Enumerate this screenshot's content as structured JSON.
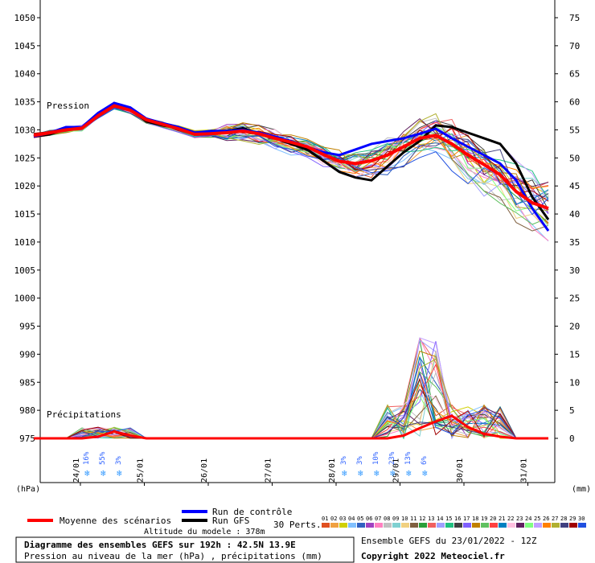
{
  "chart_data": {
    "type": "line",
    "title": "Diagramme des ensembles GEFS sur 192h : 42.5N 13.9E",
    "subtitle": "Pression au niveau de la mer (hPa) , précipitations (mm)",
    "left_axis_unit": "(hPa)",
    "right_axis_unit": "(mm)",
    "left_ticks": [
      1050,
      1045,
      1040,
      1035,
      1030,
      1025,
      1020,
      1015,
      1010,
      1005,
      1000,
      995,
      990,
      985,
      980,
      975
    ],
    "right_ticks": [
      75,
      70,
      65,
      60,
      55,
      50,
      45,
      40,
      35,
      30,
      25,
      20,
      15,
      10,
      5,
      0
    ],
    "date_labels": [
      "24/01",
      "25/01",
      "26/01",
      "27/01",
      "28/01",
      "29/01",
      "30/01",
      "31/01"
    ],
    "panel_labels": {
      "pressure": "Pression",
      "precip": "Précipitations"
    },
    "x_hours": [
      0,
      6,
      12,
      18,
      24,
      30,
      36,
      42,
      48,
      54,
      60,
      66,
      72,
      78,
      84,
      90,
      96,
      102,
      108,
      114,
      120,
      126,
      132,
      138,
      144,
      150,
      156,
      162,
      168,
      174,
      180,
      186,
      192
    ],
    "series": [
      {
        "name": "Moyenne des scénarios",
        "color": "#ff0000",
        "values": [
          1029,
          1029.5,
          1030,
          1030.3,
          1032.5,
          1034.3,
          1033.5,
          1031.8,
          1031,
          1030.2,
          1029.2,
          1029.3,
          1029.5,
          1029.8,
          1029.3,
          1028.5,
          1027.8,
          1027,
          1025.6,
          1024.4,
          1024,
          1024.5,
          1025.5,
          1027,
          1028.5,
          1029,
          1027.5,
          1025.5,
          1023.8,
          1022,
          1019,
          1017,
          1016
        ]
      },
      {
        "name": "Run de contrôle",
        "color": "#0000ff",
        "values": [
          1028.8,
          1029.5,
          1030.5,
          1030.5,
          1033,
          1034.8,
          1034,
          1032,
          1031.2,
          1030.5,
          1029.5,
          1029.8,
          1029.8,
          1030,
          1029.5,
          1028.8,
          1028,
          1027,
          1026,
          1025.5,
          1026.5,
          1027.5,
          1028,
          1028.5,
          1029.3,
          1030.2,
          1028.5,
          1027,
          1025.5,
          1024,
          1021,
          1016,
          1012
        ]
      },
      {
        "name": "Run GFS",
        "color": "#000000",
        "values": [
          1028.8,
          1029.2,
          1030.2,
          1030.5,
          1032.5,
          1034.2,
          1033.8,
          1031.5,
          1030.8,
          1030.3,
          1029.3,
          1029.8,
          1029.8,
          1030.3,
          1029.3,
          1028.5,
          1027.5,
          1026.5,
          1024.5,
          1022.5,
          1021.5,
          1021,
          1023.5,
          1026,
          1028,
          1030.8,
          1030.5,
          1029.5,
          1028.5,
          1027.5,
          1024,
          1018,
          1014
        ]
      }
    ],
    "precip_ensemble_label": "30 Perts.",
    "precip_series": [
      {
        "name": "Moyenne des scénarios",
        "values": [
          0,
          0,
          0,
          0,
          0.3,
          1.2,
          0.5,
          0,
          0,
          0,
          0,
          0,
          0,
          0,
          0,
          0,
          0,
          0,
          0,
          0,
          0,
          0,
          0,
          0.5,
          1.8,
          3,
          4,
          2,
          0.8,
          0.3,
          0,
          0,
          0
        ]
      }
    ],
    "snow_chances": [
      {
        "label": "16%",
        "hour": 18
      },
      {
        "label": "55%",
        "hour": 24
      },
      {
        "label": "3%",
        "hour": 30
      },
      {
        "label": "3%",
        "hour": 114
      },
      {
        "label": "3%",
        "hour": 120
      },
      {
        "label": "10%",
        "hour": 126
      },
      {
        "label": "23%",
        "hour": 132
      },
      {
        "label": "13%",
        "hour": 138
      },
      {
        "label": "6%",
        "hour": 144
      }
    ],
    "ylim_pressure": [
      975,
      1050
    ],
    "ylim_precip": [
      0,
      75
    ],
    "grid": false,
    "legend_position": "bottom"
  },
  "legend": {
    "mean_label": "Moyenne des scénarios",
    "control_label": "Run de contrôle",
    "gfs_label": "Run GFS",
    "perts_label": "30 Perts.",
    "altitude": "Altitude du modele : 378m",
    "members": [
      "01",
      "02",
      "03",
      "04",
      "05",
      "06",
      "07",
      "08",
      "09",
      "10",
      "11",
      "12",
      "13",
      "14",
      "15",
      "16",
      "17",
      "18",
      "19",
      "20",
      "21",
      "22",
      "23",
      "24",
      "25",
      "26",
      "27",
      "28",
      "29",
      "30"
    ],
    "member_colors": [
      "#e05020",
      "#f0a040",
      "#d0d000",
      "#80c0ff",
      "#3060c0",
      "#a040c0",
      "#ff80c0",
      "#c0c0c0",
      "#7fd0d0",
      "#f0d080",
      "#806040",
      "#2a9f3a",
      "#f06060",
      "#a0a0ff",
      "#20c080",
      "#404040",
      "#8060ff",
      "#c08000",
      "#60c060",
      "#ff4040",
      "#0080c0",
      "#ffc0e0",
      "#602060",
      "#80ff80",
      "#c0a0ff",
      "#ff8000",
      "#b0b030",
      "#404080",
      "#a00000",
      "#2050e0"
    ]
  },
  "footer": {
    "title": "Diagramme des ensembles GEFS sur 192h : 42.5N 13.9E",
    "subtitle": "Pression au niveau de la mer (hPa) , précipitations (mm)",
    "run_info": "Ensemble GEFS du 23/01/2022 - 12Z",
    "copyright": "Copyright 2022 Meteociel.fr"
  }
}
